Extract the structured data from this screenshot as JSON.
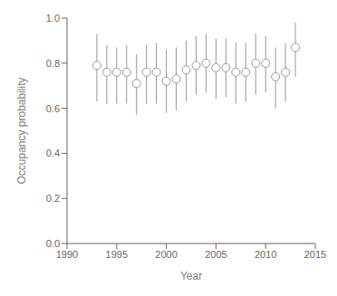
{
  "chart_data": {
    "type": "scatter",
    "x": [
      1993,
      1994,
      1995,
      1996,
      1997,
      1998,
      1999,
      2000,
      2001,
      2002,
      2003,
      2004,
      2005,
      2006,
      2007,
      2008,
      2009,
      2010,
      2011,
      2012,
      2013
    ],
    "values": [
      0.79,
      0.76,
      0.76,
      0.76,
      0.71,
      0.76,
      0.76,
      0.72,
      0.73,
      0.77,
      0.79,
      0.8,
      0.78,
      0.78,
      0.76,
      0.76,
      0.8,
      0.8,
      0.74,
      0.76,
      0.87
    ],
    "upper": [
      0.93,
      0.88,
      0.87,
      0.88,
      0.84,
      0.88,
      0.89,
      0.86,
      0.87,
      0.9,
      0.92,
      0.93,
      0.91,
      0.91,
      0.89,
      0.89,
      0.93,
      0.92,
      0.87,
      0.89,
      0.98
    ],
    "lower": [
      0.63,
      0.62,
      0.62,
      0.62,
      0.57,
      0.62,
      0.62,
      0.58,
      0.59,
      0.63,
      0.66,
      0.67,
      0.64,
      0.65,
      0.62,
      0.63,
      0.66,
      0.67,
      0.6,
      0.63,
      0.74
    ],
    "xlim": [
      1990,
      2015
    ],
    "ylim": [
      0,
      1
    ],
    "xticks": [
      1990,
      1995,
      2000,
      2005,
      2010,
      2015
    ],
    "yticks": [
      {
        "value": 0,
        "label": "0.0"
      },
      0.2,
      0.4,
      0.6,
      0.8,
      {
        "value": 1,
        "label": "1.0"
      }
    ],
    "xlabel": "Year",
    "ylabel": "Occupancy probability",
    "color": "#999999",
    "marker": "circle",
    "grid": false
  }
}
